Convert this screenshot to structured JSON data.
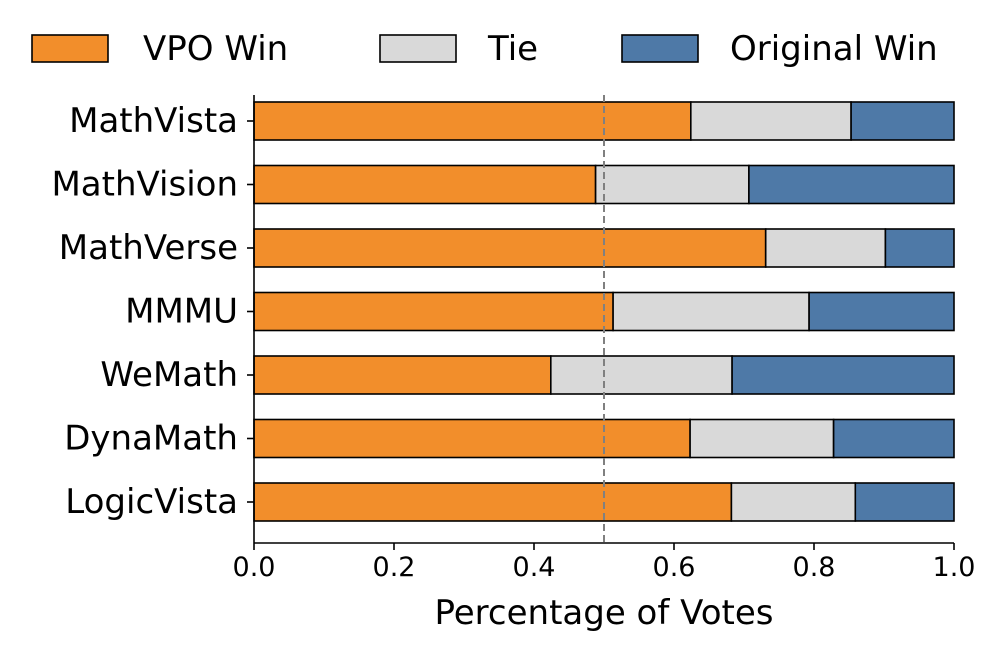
{
  "chart_data": {
    "type": "bar",
    "orientation": "horizontal",
    "stacked": true,
    "categories": [
      "MathVista",
      "MathVision",
      "MathVerse",
      "MMMU",
      "WeMath",
      "DynaMath",
      "LogicVista"
    ],
    "series": [
      {
        "name": "VPO Win",
        "color": "#f28e2b",
        "values": [
          0.624,
          0.488,
          0.731,
          0.513,
          0.424,
          0.623,
          0.682
        ]
      },
      {
        "name": "Tie",
        "color": "#d9d9d9",
        "values": [
          0.229,
          0.219,
          0.171,
          0.28,
          0.259,
          0.205,
          0.177
        ]
      },
      {
        "name": "Original Win",
        "color": "#4e79a7",
        "values": [
          0.147,
          0.293,
          0.098,
          0.207,
          0.317,
          0.172,
          0.141
        ]
      }
    ],
    "xlabel": "Percentage of Votes",
    "ylabel": "",
    "xlim": [
      0,
      1
    ],
    "xticks": [
      "0.0",
      "0.2",
      "0.4",
      "0.6",
      "0.8",
      "1.0"
    ],
    "reference_line": {
      "x": 0.5,
      "style": "dashed",
      "color": "#808080"
    },
    "legend": {
      "placement": "top",
      "entries": [
        "VPO Win",
        "Tie",
        "Original Win"
      ]
    },
    "grid": false
  }
}
